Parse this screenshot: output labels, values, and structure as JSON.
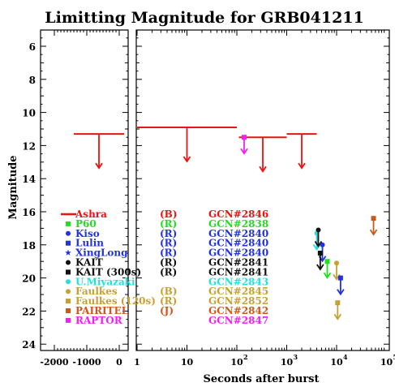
{
  "chart_data": {
    "type": "scatter",
    "title": "Limitting Magnitude for GRB041211",
    "ylabel": "Magnitude",
    "xlabel": "Seconds after burst",
    "ylim": [
      25,
      5
    ],
    "y_ticks": [
      "6",
      "8",
      "10",
      "12",
      "14",
      "16",
      "18",
      "20",
      "22",
      "24"
    ],
    "left_panel": {
      "xlim": [
        -2000,
        0
      ],
      "x_ticks": [
        "-2000",
        "-1000",
        "0"
      ]
    },
    "right_panel": {
      "xscale": "log",
      "xlim": [
        1,
        100000
      ],
      "x_ticks": [
        "1",
        "10",
        "10",
        "10",
        "10",
        "10"
      ],
      "x_tick_exponents": [
        "",
        "",
        "2",
        "3",
        "4",
        "5"
      ]
    },
    "legend": [
      {
        "name": "Ashra",
        "filter": "(B)",
        "gcn": "GCN#2846",
        "color": "#ee1111",
        "marker": "line"
      },
      {
        "name": "P60",
        "filter": "(R)",
        "gcn": "GCN#2838",
        "color": "#22dd22",
        "marker": "square"
      },
      {
        "name": "Kiso",
        "filter": "(R)",
        "gcn": "GCN#2840",
        "color": "#2233dd",
        "marker": "circle"
      },
      {
        "name": "Lulin",
        "filter": "(R)",
        "gcn": "GCN#2840",
        "color": "#2233dd",
        "marker": "square"
      },
      {
        "name": "XingLong",
        "filter": "(R)",
        "gcn": "GCN#2840",
        "color": "#2233dd",
        "marker": "star"
      },
      {
        "name": "KAIT",
        "filter": "(R)",
        "gcn": "GCN#2841",
        "color": "#111111",
        "marker": "circle"
      },
      {
        "name": "KAIT (300s)",
        "filter": "(R)",
        "gcn": "GCN#2841",
        "color": "#111111",
        "marker": "square"
      },
      {
        "name": "U.Miyazaki",
        "filter": "",
        "gcn": "GCN#2843",
        "color": "#22e0e0",
        "marker": "circle"
      },
      {
        "name": "Faulkes",
        "filter": "(B)",
        "gcn": "GCN#2845",
        "color": "#c8a032",
        "marker": "circle"
      },
      {
        "name": "Faulkes (120s)",
        "filter": "(R)",
        "gcn": "GCN#2852",
        "color": "#c8a032",
        "marker": "square"
      },
      {
        "name": "PAIRITEL",
        "filter": "(J)",
        "gcn": "GCN#2842",
        "color": "#c85a1e",
        "marker": "square"
      },
      {
        "name": "RAPTOR",
        "filter": "",
        "gcn": "GCN#2847",
        "color": "#ee22ee",
        "marker": "square"
      }
    ],
    "series": [
      {
        "name": "Ashra",
        "color": "#ee1111",
        "limits": [
          {
            "x_start": -1400,
            "x_end": 0,
            "mag": 11.3
          },
          {
            "x_start": 1,
            "x_end": 100,
            "mag": 10.9
          },
          {
            "x_start": 110,
            "x_end": 1000,
            "mag": 11.5
          },
          {
            "x_start": 1000,
            "x_end": 4000,
            "mag": 11.3
          }
        ]
      },
      {
        "name": "RAPTOR",
        "color": "#ee22ee",
        "points": [
          {
            "x": 140,
            "mag": 11.5
          }
        ]
      },
      {
        "name": "U.Miyazaki",
        "color": "#22e0e0",
        "points": [
          {
            "x": 4000,
            "mag": 17.3
          }
        ]
      },
      {
        "name": "KAIT",
        "color": "#111111",
        "points": [
          {
            "x": 4300,
            "mag": 17.1
          }
        ]
      },
      {
        "name": "Kiso",
        "color": "#2233dd",
        "points": [
          {
            "x": 5200,
            "mag": 18.0
          }
        ]
      },
      {
        "name": "KAIT (300s)",
        "color": "#111111",
        "points": [
          {
            "x": 4700,
            "mag": 18.5
          }
        ]
      },
      {
        "name": "P60",
        "color": "#22dd22",
        "points": [
          {
            "x": 6500,
            "mag": 19.0
          }
        ]
      },
      {
        "name": "Faulkes",
        "color": "#c8a032",
        "points": [
          {
            "x": 10000,
            "mag": 19.1
          }
        ]
      },
      {
        "name": "Lulin",
        "color": "#2233dd",
        "points": [
          {
            "x": 12000,
            "mag": 20.0
          }
        ]
      },
      {
        "name": "Faulkes (120s)",
        "color": "#c8a032",
        "points": [
          {
            "x": 10500,
            "mag": 21.5
          }
        ]
      },
      {
        "name": "PAIRITEL",
        "color": "#c85a1e",
        "points": [
          {
            "x": 55000,
            "mag": 16.4
          }
        ]
      }
    ]
  }
}
